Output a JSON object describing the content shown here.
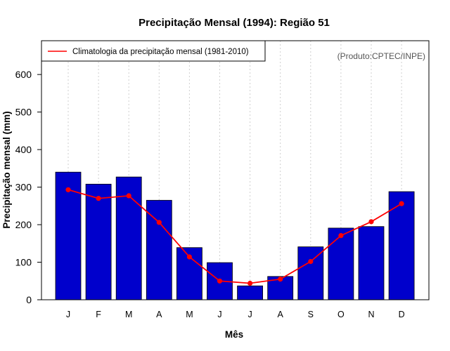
{
  "chart_data": {
    "type": "bar",
    "title": "Precipitação Mensal (1994): Região 51",
    "xlabel": "Mês",
    "ylabel": "Precipitação mensal (mm)",
    "categories": [
      "J",
      "F",
      "M",
      "A",
      "M",
      "J",
      "J",
      "A",
      "S",
      "O",
      "N",
      "D"
    ],
    "ylim": [
      0,
      690
    ],
    "yticks": [
      0,
      100,
      200,
      300,
      400,
      500,
      600
    ],
    "grid": "vertical dotted",
    "series": [
      {
        "name": "Precipitação mensal (1994)",
        "kind": "bar",
        "color": "#0000cc",
        "values": [
          340,
          308,
          327,
          265,
          139,
          99,
          37,
          62,
          141,
          191,
          195,
          288
        ]
      },
      {
        "name": "Climatologia da precipitação mensal (1981-2010)",
        "kind": "line",
        "color": "#ff0000",
        "values": [
          293,
          270,
          277,
          206,
          114,
          50,
          44,
          55,
          102,
          171,
          208,
          256
        ]
      }
    ],
    "legend": {
      "position": "top-left",
      "label": "Climatologia da precipitação mensal (1981-2010)"
    },
    "annotation": "(Produto:CPTEC/INPE)"
  }
}
